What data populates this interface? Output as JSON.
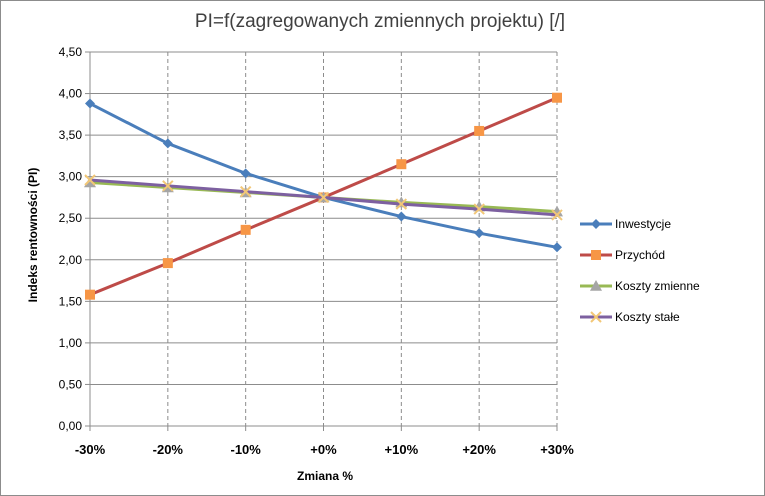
{
  "chart_data": {
    "type": "line",
    "title": "PI=f(zagregowanych zmiennych projektu) [/]",
    "xlabel": "Zmiana %",
    "ylabel": "Indeks rentowności (PI)",
    "categories": [
      "-30%",
      "-20%",
      "-10%",
      "+0%",
      "+10%",
      "+20%",
      "+30%"
    ],
    "ylim": [
      0,
      4.5
    ],
    "yticks": [
      "0,00",
      "0,50",
      "1,00",
      "1,50",
      "2,00",
      "2,50",
      "3,00",
      "3,50",
      "4,00",
      "4,50"
    ],
    "grid": true,
    "legend_position": "right",
    "series": [
      {
        "name": "Inwestycje",
        "color": "#4a7ebb",
        "marker": "diamond",
        "values": [
          3.88,
          3.4,
          3.04,
          2.75,
          2.52,
          2.32,
          2.15
        ]
      },
      {
        "name": "Przychód",
        "color": "#be4b48",
        "marker_color": "#f79646",
        "marker": "square",
        "values": [
          1.58,
          1.96,
          2.36,
          2.75,
          3.15,
          3.55,
          3.95
        ]
      },
      {
        "name": "Koszty zmienne",
        "color": "#98b954",
        "marker_color": "#a5a5a5",
        "marker": "triangle",
        "values": [
          2.93,
          2.87,
          2.81,
          2.75,
          2.69,
          2.64,
          2.58
        ]
      },
      {
        "name": "Koszty stałe",
        "color": "#7d60a0",
        "marker_color": "#f2c777",
        "marker": "x",
        "values": [
          2.96,
          2.89,
          2.82,
          2.75,
          2.67,
          2.61,
          2.54
        ]
      }
    ]
  }
}
